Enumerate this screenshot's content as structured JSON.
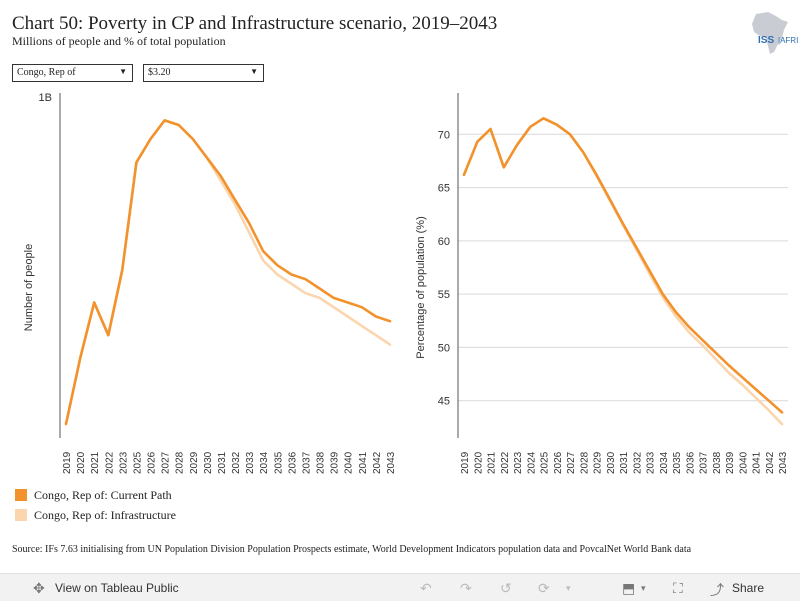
{
  "title": "Chart 50: Poverty in CP and Infrastructure scenario, 2019–2043",
  "subtitle": "Millions of people and % of total population",
  "logo_text": "ISS AFRICA",
  "filters": {
    "country": "Congo, Rep of",
    "threshold": "$3.20"
  },
  "colors": {
    "current_path": "#f2922c",
    "infrastructure": "#fbd5ad",
    "grid": "#d9d9d9",
    "axis": "#555555"
  },
  "chart_data": [
    {
      "type": "line",
      "ylabel": "Number of people",
      "xlabel": "",
      "x": [
        "2019",
        "2020",
        "2021",
        "2022",
        "2023",
        "2025",
        "2026",
        "2027",
        "2028",
        "2029",
        "2030",
        "2031",
        "2032",
        "2033",
        "2034",
        "2035",
        "2036",
        "2037",
        "2038",
        "2039",
        "2040",
        "2041",
        "2042",
        "2043"
      ],
      "yticks": [
        {
          "value": 1.0,
          "label": "1B"
        }
      ],
      "ylim": [
        0.27,
        1.0
      ],
      "grid": false,
      "series": [
        {
          "name": "Congo, Rep of: Current Path",
          "values": [
            0.3,
            0.44,
            0.56,
            0.49,
            0.63,
            0.86,
            0.91,
            0.95,
            0.94,
            0.91,
            0.87,
            0.83,
            0.78,
            0.73,
            0.67,
            0.64,
            0.62,
            0.61,
            0.59,
            0.57,
            0.56,
            0.55,
            0.53,
            0.52
          ]
        },
        {
          "name": "Congo, Rep of: Infrastructure",
          "values": [
            0.3,
            0.44,
            0.56,
            0.49,
            0.63,
            0.86,
            0.91,
            0.95,
            0.94,
            0.91,
            0.87,
            0.82,
            0.77,
            0.71,
            0.65,
            0.62,
            0.6,
            0.58,
            0.57,
            0.55,
            0.53,
            0.51,
            0.49,
            0.47
          ]
        }
      ]
    },
    {
      "type": "line",
      "ylabel": "Percentage of population (%)",
      "xlabel": "",
      "x": [
        "2019",
        "2020",
        "2021",
        "2022",
        "2023",
        "2024",
        "2025",
        "2026",
        "2027",
        "2028",
        "2029",
        "2030",
        "2031",
        "2032",
        "2033",
        "2034",
        "2035",
        "2036",
        "2037",
        "2038",
        "2039",
        "2040",
        "2041",
        "2042",
        "2043"
      ],
      "yticks": [
        {
          "value": 45,
          "label": "45"
        },
        {
          "value": 50,
          "label": "50"
        },
        {
          "value": 55,
          "label": "55"
        },
        {
          "value": 60,
          "label": "60"
        },
        {
          "value": 65,
          "label": "65"
        },
        {
          "value": 70,
          "label": "70"
        }
      ],
      "ylim": [
        41.5,
        73.5
      ],
      "grid": true,
      "series": [
        {
          "name": "Congo, Rep of: Current Path",
          "values": [
            66.2,
            69.3,
            70.5,
            66.9,
            69.0,
            70.7,
            71.5,
            70.9,
            70.0,
            68.3,
            66.2,
            63.9,
            61.6,
            59.4,
            57.2,
            55.0,
            53.3,
            51.9,
            50.7,
            49.5,
            48.3,
            47.2,
            46.1,
            45.0,
            43.9
          ]
        },
        {
          "name": "Congo, Rep of: Infrastructure",
          "values": [
            66.2,
            69.3,
            70.5,
            66.9,
            69.0,
            70.7,
            71.5,
            70.9,
            70.0,
            68.3,
            66.1,
            63.8,
            61.5,
            59.2,
            56.9,
            54.7,
            52.9,
            51.4,
            50.2,
            48.9,
            47.6,
            46.5,
            45.3,
            44.1,
            42.8
          ]
        }
      ]
    }
  ],
  "legend": [
    {
      "label": "Congo, Rep of: Current Path"
    },
    {
      "label": "Congo, Rep of: Infrastructure"
    }
  ],
  "source": "Source: IFs 7.63 initialising from UN Population Division Population Prospects estimate, World Development Indicators population data and PovcalNet World Bank data",
  "toolbar": {
    "view_label": "View on Tableau Public",
    "share_label": "Share"
  }
}
